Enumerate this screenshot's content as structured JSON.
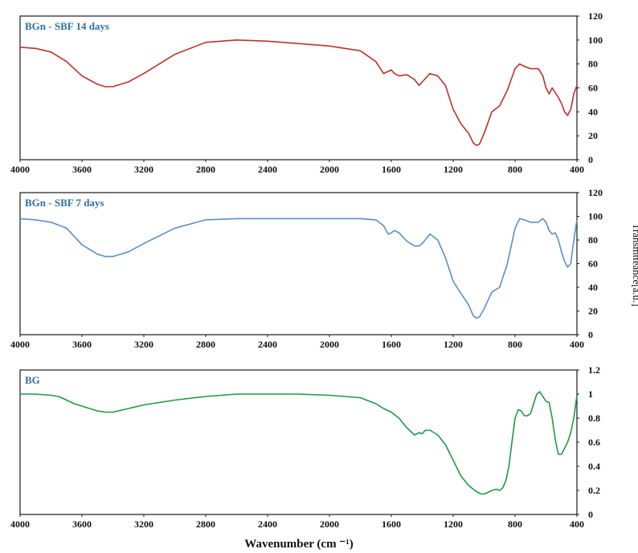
{
  "chart_data": [
    {
      "type": "line",
      "title": "BGn - SBF  14 days",
      "color": "#c0302b",
      "title_color": "#2e6ea6",
      "xlim": [
        4000,
        400
      ],
      "ylim": [
        0,
        120
      ],
      "xticks": [
        4000,
        3600,
        3200,
        2800,
        2400,
        2000,
        1600,
        1200,
        800,
        400
      ],
      "yticks": [
        0,
        20,
        40,
        60,
        80,
        100,
        120
      ],
      "series": [
        {
          "x": [
            4000,
            3900,
            3800,
            3700,
            3600,
            3500,
            3450,
            3400,
            3300,
            3200,
            3000,
            2800,
            2600,
            2400,
            2200,
            2000,
            1800,
            1700,
            1650,
            1600,
            1580,
            1550,
            1500,
            1450,
            1420,
            1400,
            1350,
            1300,
            1250,
            1200,
            1150,
            1100,
            1070,
            1050,
            1030,
            1000,
            950,
            900,
            850,
            800,
            770,
            740,
            700,
            650,
            620,
            600,
            580,
            560,
            540,
            520,
            500,
            480,
            460,
            440,
            420,
            400
          ],
          "y": [
            94,
            93,
            90,
            82,
            70,
            63,
            61,
            61,
            65,
            72,
            88,
            98,
            100,
            99,
            97,
            95,
            91,
            82,
            72,
            75,
            72,
            70,
            71,
            67,
            62,
            65,
            72,
            70,
            62,
            42,
            30,
            22,
            14,
            12,
            13,
            22,
            40,
            45,
            58,
            76,
            80,
            78,
            76,
            76,
            70,
            60,
            55,
            60,
            56,
            52,
            47,
            40,
            37,
            42,
            55,
            62
          ]
        }
      ]
    },
    {
      "type": "line",
      "title": "BGn - SBF  7 days",
      "color": "#5b8fc8",
      "title_color": "#2e6ea6",
      "xlim": [
        4000,
        400
      ],
      "ylim": [
        0,
        120
      ],
      "xticks": [
        4000,
        3600,
        3200,
        2800,
        2400,
        2000,
        1600,
        1200,
        800,
        400
      ],
      "yticks": [
        0,
        20,
        40,
        60,
        80,
        100,
        120
      ],
      "ylabel": "Transmtteance[a.u.]",
      "series": [
        {
          "x": [
            4000,
            3900,
            3800,
            3700,
            3600,
            3500,
            3450,
            3400,
            3300,
            3200,
            3000,
            2800,
            2600,
            2400,
            2200,
            2000,
            1800,
            1700,
            1650,
            1620,
            1600,
            1580,
            1550,
            1500,
            1450,
            1420,
            1400,
            1350,
            1300,
            1250,
            1200,
            1150,
            1100,
            1070,
            1050,
            1030,
            1000,
            950,
            900,
            850,
            800,
            770,
            740,
            700,
            650,
            620,
            600,
            580,
            560,
            540,
            520,
            500,
            480,
            460,
            440,
            420,
            400
          ],
          "y": [
            98,
            97,
            95,
            90,
            76,
            68,
            66,
            66,
            70,
            77,
            90,
            97,
            98,
            98,
            98,
            98,
            98,
            97,
            92,
            85,
            86,
            88,
            86,
            79,
            75,
            75,
            77,
            85,
            80,
            65,
            45,
            35,
            25,
            16,
            14,
            15,
            22,
            36,
            40,
            60,
            90,
            98,
            97,
            95,
            95,
            98,
            95,
            88,
            85,
            86,
            80,
            70,
            62,
            57,
            60,
            80,
            97
          ]
        }
      ]
    },
    {
      "type": "line",
      "title": "BG",
      "color": "#1f9a47",
      "title_color": "#2e6ea6",
      "xlim": [
        4000,
        400
      ],
      "ylim": [
        0,
        1.2
      ],
      "xticks": [
        4000,
        3600,
        3200,
        2800,
        2400,
        2000,
        1600,
        1200,
        800,
        400
      ],
      "yticks": [
        0,
        0.2,
        0.4,
        0.6,
        0.8,
        1,
        1.2
      ],
      "xlabel": "Wavenumber (cm ⁻¹)",
      "series": [
        {
          "x": [
            4000,
            3900,
            3800,
            3750,
            3700,
            3650,
            3600,
            3550,
            3500,
            3450,
            3400,
            3300,
            3200,
            3000,
            2800,
            2600,
            2400,
            2200,
            2000,
            1800,
            1700,
            1650,
            1600,
            1550,
            1500,
            1450,
            1420,
            1400,
            1380,
            1350,
            1300,
            1250,
            1200,
            1150,
            1100,
            1050,
            1020,
            1000,
            980,
            950,
            920,
            900,
            880,
            860,
            840,
            820,
            800,
            780,
            760,
            740,
            720,
            700,
            680,
            660,
            640,
            620,
            600,
            580,
            560,
            540,
            520,
            500,
            480,
            460,
            440,
            420,
            400
          ],
          "y": [
            1.0,
            1.0,
            0.99,
            0.98,
            0.95,
            0.92,
            0.9,
            0.88,
            0.86,
            0.85,
            0.85,
            0.88,
            0.91,
            0.95,
            0.98,
            1.0,
            1.0,
            1.0,
            0.99,
            0.97,
            0.92,
            0.88,
            0.85,
            0.8,
            0.72,
            0.66,
            0.68,
            0.67,
            0.7,
            0.7,
            0.66,
            0.58,
            0.45,
            0.32,
            0.24,
            0.19,
            0.17,
            0.17,
            0.18,
            0.2,
            0.21,
            0.2,
            0.22,
            0.28,
            0.4,
            0.6,
            0.8,
            0.87,
            0.86,
            0.82,
            0.82,
            0.84,
            0.92,
            1.0,
            1.02,
            0.98,
            0.94,
            0.93,
            0.8,
            0.62,
            0.5,
            0.5,
            0.55,
            0.6,
            0.68,
            0.8,
            0.99
          ]
        }
      ]
    }
  ]
}
